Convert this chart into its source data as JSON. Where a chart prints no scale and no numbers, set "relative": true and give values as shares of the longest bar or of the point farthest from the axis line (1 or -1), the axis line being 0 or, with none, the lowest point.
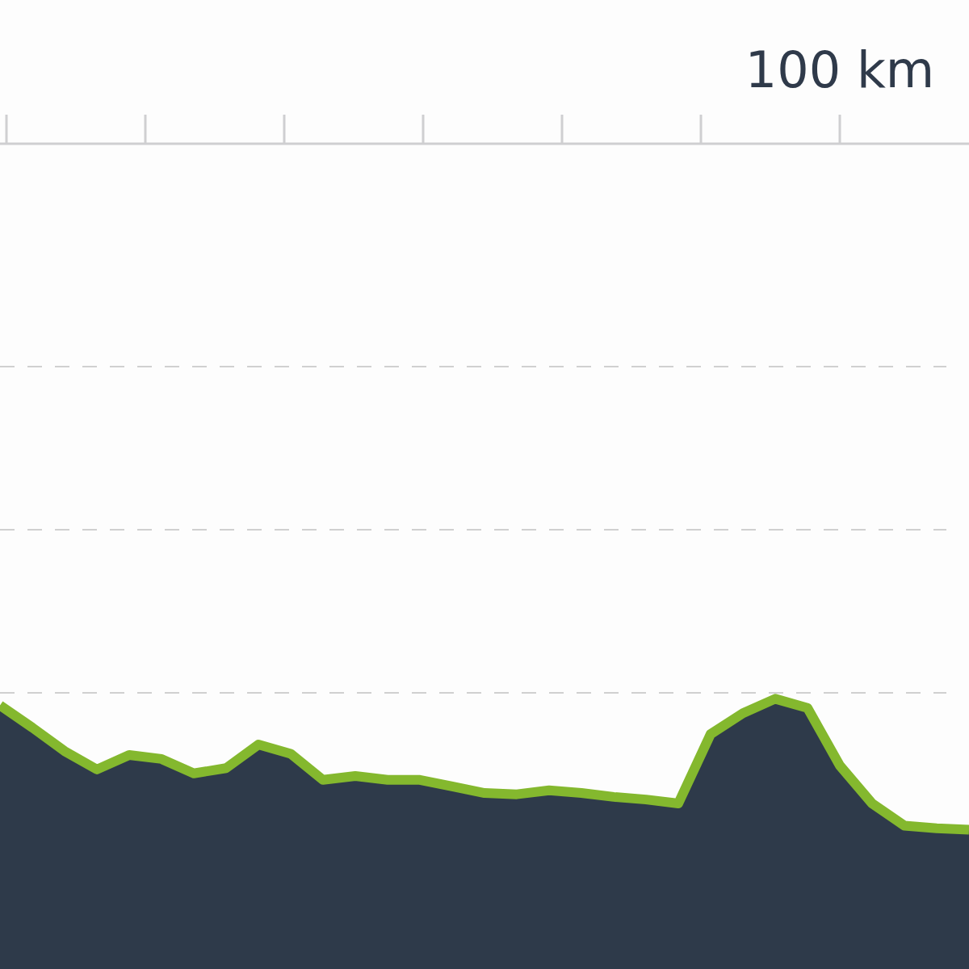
{
  "chart_data": {
    "type": "area",
    "relative": true,
    "color": "#84b82e",
    "annotations": [
      "100 km"
    ],
    "categories": [
      null,
      null,
      null,
      null,
      null,
      null,
      null,
      null,
      null,
      null,
      null,
      null,
      null,
      null,
      null,
      null,
      null,
      null,
      null,
      null,
      null,
      null,
      null,
      null,
      null,
      null,
      null,
      null,
      null,
      null,
      null
    ],
    "values": [
      0.95,
      0.78,
      0.6,
      0.46,
      0.57,
      0.54,
      0.43,
      0.47,
      0.65,
      0.58,
      0.38,
      0.41,
      0.38,
      0.38,
      0.33,
      0.28,
      0.27,
      0.3,
      0.28,
      0.25,
      0.23,
      0.2,
      0.73,
      0.89,
      1,
      0.93,
      0.49,
      0.2,
      0.03,
      0.01,
      0
    ]
  }
}
